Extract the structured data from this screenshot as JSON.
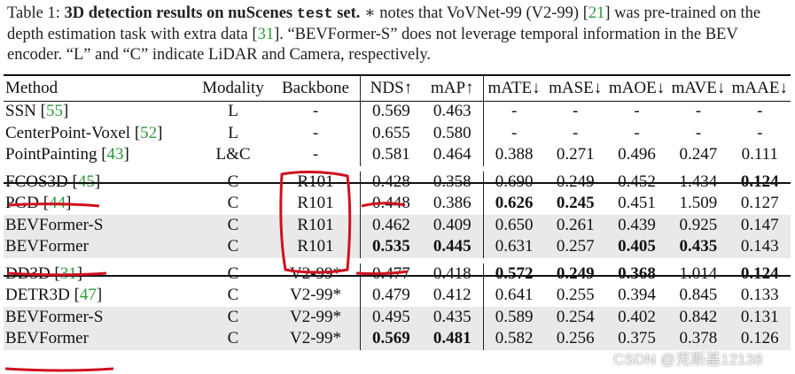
{
  "caption": {
    "label": "Table 1:",
    "bold_title": "3D detection results on nuScenes",
    "mono": "test",
    "bold_end": "set.",
    "text1": " ∗ notes that VoVNet-99 (V2-99) [",
    "ref1": "21",
    "text2": "] was pre-trained on the depth estimation task with extra data [",
    "ref2": "31",
    "text3": "]. “BEVFormer-S” does not leverage temporal information in the BEV encoder. “L” and “C” indicate LiDAR and Camera, respectively."
  },
  "columns": [
    "Method",
    "Modality",
    "Backbone",
    "NDS↑",
    "mAP↑",
    "mATE↓",
    "mASE↓",
    "mAOE↓",
    "mAVE↓",
    "mAAE↓"
  ],
  "groups": [
    [
      {
        "name": "SSN",
        "ref": "55",
        "modality": "L",
        "backbone": "-",
        "values": [
          "0.569",
          "0.463",
          "-",
          "-",
          "-",
          "-",
          "-"
        ],
        "bold": []
      },
      {
        "name": "CenterPoint-Voxel",
        "ref": "52",
        "modality": "L",
        "backbone": "-",
        "values": [
          "0.655",
          "0.580",
          "-",
          "-",
          "-",
          "-",
          "-"
        ],
        "bold": []
      },
      {
        "name": "PointPainting",
        "ref": "43",
        "modality": "L&C",
        "backbone": "-",
        "values": [
          "0.581",
          "0.464",
          "0.388",
          "0.271",
          "0.496",
          "0.247",
          "0.111"
        ],
        "bold": []
      }
    ],
    [
      {
        "name": "FCOS3D",
        "ref": "45",
        "modality": "C",
        "backbone": "R101",
        "values": [
          "0.428",
          "0.358",
          "0.690",
          "0.249",
          "0.452",
          "1.434",
          "0.124"
        ],
        "bold": [
          6
        ]
      },
      {
        "name": "PGD",
        "ref": "44",
        "modality": "C",
        "backbone": "R101",
        "values": [
          "0.448",
          "0.386",
          "0.626",
          "0.245",
          "0.451",
          "1.509",
          "0.127"
        ],
        "bold": [
          2,
          3
        ]
      },
      {
        "name": "BEVFormer-S",
        "ref": "",
        "modality": "C",
        "backbone": "R101",
        "values": [
          "0.462",
          "0.409",
          "0.650",
          "0.261",
          "0.439",
          "0.925",
          "0.147"
        ],
        "bold": [],
        "shade": true
      },
      {
        "name": "BEVFormer",
        "ref": "",
        "modality": "C",
        "backbone": "R101",
        "values": [
          "0.535",
          "0.445",
          "0.631",
          "0.257",
          "0.405",
          "0.435",
          "0.143"
        ],
        "bold": [
          0,
          1,
          4,
          5
        ],
        "shade": true
      }
    ],
    [
      {
        "name": "DD3D",
        "ref": "31",
        "modality": "C",
        "backbone": "V2-99*",
        "values": [
          "0.477",
          "0.418",
          "0.572",
          "0.249",
          "0.368",
          "1.014",
          "0.124"
        ],
        "bold": [
          2,
          3,
          4,
          6
        ]
      },
      {
        "name": "DETR3D",
        "ref": "47",
        "modality": "C",
        "backbone": "V2-99*",
        "values": [
          "0.479",
          "0.412",
          "0.641",
          "0.255",
          "0.394",
          "0.845",
          "0.133"
        ],
        "bold": []
      },
      {
        "name": "BEVFormer-S",
        "ref": "",
        "modality": "C",
        "backbone": "V2-99*",
        "values": [
          "0.495",
          "0.435",
          "0.589",
          "0.254",
          "0.402",
          "0.842",
          "0.131"
        ],
        "bold": [],
        "shade": true
      },
      {
        "name": "BEVFormer",
        "ref": "",
        "modality": "C",
        "backbone": "V2-99*",
        "values": [
          "0.569",
          "0.481",
          "0.582",
          "0.256",
          "0.375",
          "0.378",
          "0.126"
        ],
        "bold": [
          0,
          1
        ],
        "shade": true
      }
    ]
  ],
  "watermark": "CSDN @克斯基12138",
  "colors": {
    "ref": "#2c9a3a",
    "annotation": "#d01020",
    "shade": "#e9e9e9"
  }
}
